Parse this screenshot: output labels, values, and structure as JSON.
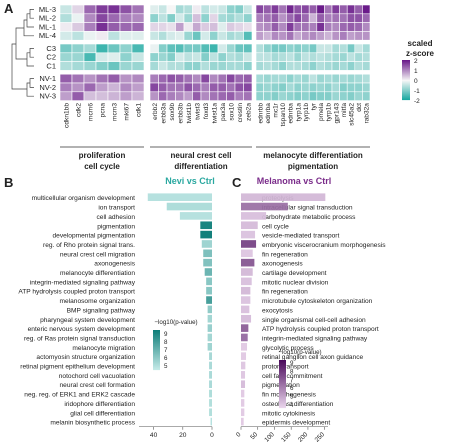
{
  "panels": {
    "A": {
      "label": "A",
      "rows": [
        "ML-3",
        "ML-2",
        "ML-1",
        "ML-4",
        "C3",
        "C2",
        "C1",
        "NV-1",
        "NV-2",
        "NV-3"
      ],
      "row_groups": [
        [
          0,
          1,
          2,
          3
        ],
        [
          4,
          5,
          6
        ],
        [
          7,
          8,
          9
        ]
      ],
      "column_groups": [
        {
          "label_lines": [
            "proliferation",
            "cell cycle"
          ],
          "genes": [
            "cdkn1bb",
            "cdk2",
            "mcm6",
            "pcna",
            "mcm3",
            "mki67",
            "cdk1"
          ]
        },
        {
          "label_lines": [
            "neural crest cell",
            "differentiation"
          ],
          "genes": [
            "erbb2",
            "erbb3a",
            "sox9b",
            "erbb3b",
            "twist1b",
            "twist3",
            "foxd3",
            "twist1a",
            "pax3a",
            "sox10",
            "crestin",
            "zeb2a"
          ]
        },
        {
          "label_lines": [
            "melanocyte differentiation",
            "pigmentation"
          ],
          "genes": [
            "ednrbb",
            "ednrba",
            "mc1r",
            "tspan10",
            "ednrba",
            "tyrp1a",
            "tyrp1b",
            "tyr",
            "pmela",
            "tyrp1b",
            "gpr143",
            "mitfa",
            "slc45a2",
            "dct",
            "rab32a"
          ]
        }
      ],
      "legend": {
        "title_lines": [
          "scaled",
          "z-score"
        ],
        "ticks": [
          2,
          1,
          0,
          -1,
          -2
        ]
      },
      "chart_data": {
        "type": "heatmap",
        "rows": [
          "ML-3",
          "ML-2",
          "ML-1",
          "ML-4",
          "C3",
          "C2",
          "C1",
          "NV-1",
          "NV-2",
          "NV-3"
        ],
        "color_range": [
          -2,
          2
        ],
        "values": [
          [
            -0.4,
            0.3,
            1.3,
            1.7,
            1.8,
            1.5,
            1.2,
            -0.2,
            -0.4,
            0.0,
            -0.7,
            -0.6,
            0.1,
            -0.5,
            -0.3,
            -0.4,
            -0.9,
            -1.0,
            -0.4,
            1.6,
            1.4,
            1.7,
            1.2,
            1.9,
            1.5,
            1.6,
            1.4,
            2.0,
            1.2,
            1.7,
            1.4,
            1.8,
            1.4,
            2.0
          ],
          [
            -0.6,
            -0.1,
            1.0,
            1.6,
            1.3,
            1.1,
            1.0,
            -0.9,
            -0.5,
            -1.0,
            -0.3,
            -0.8,
            0.5,
            -0.9,
            0.3,
            -0.7,
            -0.8,
            -0.6,
            -0.9,
            1.1,
            1.2,
            1.4,
            0.9,
            1.3,
            1.6,
            1.3,
            0.6,
            1.4,
            1.1,
            1.2,
            1.2,
            1.5,
            1.5,
            1.3
          ],
          [
            0.1,
            0.4,
            1.1,
            1.8,
            1.4,
            1.3,
            1.3,
            0.3,
            0.3,
            0.2,
            0.8,
            0.1,
            0.7,
            0.4,
            0.5,
            -0.2,
            0.4,
            0.3,
            0.2,
            0.9,
            1.0,
            1.4,
            1.0,
            1.7,
            1.2,
            1.2,
            1.1,
            1.8,
            1.1,
            1.0,
            1.3,
            1.4,
            1.3,
            1.0
          ],
          [
            -0.3,
            -0.5,
            -0.1,
            0.1,
            -0.5,
            -0.2,
            -0.2,
            -0.4,
            -0.6,
            -0.3,
            -0.2,
            -0.8,
            -1.2,
            -0.3,
            -0.9,
            -0.4,
            -0.7,
            -0.6,
            -1.4,
            0.8,
            0.6,
            1.0,
            0.9,
            1.2,
            0.7,
            0.9,
            1.0,
            0.8,
            0.6,
            0.9,
            1.1,
            0.8,
            0.9,
            0.9
          ],
          [
            -1.1,
            -0.9,
            -0.7,
            -1.6,
            -1.2,
            -0.9,
            -1.5,
            -0.1,
            -1.0,
            -1.3,
            -1.4,
            -1.1,
            -1.1,
            -1.4,
            -1.6,
            -0.3,
            -0.8,
            -1.2,
            -1.3,
            -0.6,
            -0.9,
            -1.1,
            -1.1,
            -0.9,
            -1.0,
            -0.9,
            -1.1,
            -0.4,
            -0.4,
            -0.7,
            -0.6,
            -1.1,
            -0.4,
            -0.7
          ],
          [
            -0.8,
            -0.8,
            -1.5,
            -0.3,
            -0.2,
            -0.9,
            -0.4,
            -0.9,
            -0.8,
            -1.0,
            -0.3,
            -0.5,
            -0.4,
            -1.0,
            -0.5,
            -0.9,
            -0.6,
            -0.7,
            -0.4,
            -0.5,
            -0.5,
            -0.7,
            -0.6,
            -0.5,
            -0.8,
            -0.5,
            -0.6,
            -0.5,
            -0.6,
            -0.7,
            -0.8,
            -0.5,
            -0.7,
            -0.6
          ],
          [
            -0.6,
            -0.7,
            -0.8,
            -1.0,
            -1.2,
            -0.8,
            -0.8,
            -0.7,
            -0.4,
            -0.6,
            -0.6,
            -0.9,
            -0.9,
            -0.6,
            -0.8,
            -0.8,
            -0.7,
            -0.7,
            -0.9,
            -0.7,
            -0.6,
            -0.7,
            -0.9,
            -0.6,
            -0.6,
            -0.7,
            -0.9,
            -0.6,
            -0.7,
            -0.8,
            -0.7,
            -0.9,
            -0.6,
            -0.7
          ],
          [
            1.4,
            1.2,
            0.9,
            1.2,
            1.4,
            0.9,
            1.0,
            1.1,
            1.3,
            1.5,
            1.4,
            1.2,
            1.0,
            1.6,
            1.0,
            1.2,
            1.6,
            1.3,
            1.4,
            -0.7,
            -0.8,
            -0.7,
            -0.7,
            -0.9,
            -0.7,
            -0.8,
            -0.5,
            -0.8,
            -0.7,
            -0.8,
            -0.7,
            -0.8,
            -0.7,
            -0.6
          ],
          [
            1.1,
            0.9,
            1.3,
            0.8,
            0.6,
            1.0,
            0.8,
            1.6,
            1.4,
            1.2,
            1.2,
            1.5,
            1.3,
            1.1,
            1.4,
            1.4,
            1.2,
            1.5,
            1.6,
            -0.9,
            -0.8,
            -0.9,
            -1.0,
            -0.7,
            -0.9,
            -0.8,
            -0.9,
            -0.8,
            -0.9,
            -0.7,
            -1.0,
            -0.9,
            -0.9,
            -0.8
          ],
          [
            0.8,
            1.4,
            0.5,
            0.5,
            0.6,
            0.8,
            0.6,
            0.9,
            1.3,
            1.1,
            1.0,
            0.8,
            1.4,
            1.0,
            1.2,
            1.3,
            1.4,
            1.1,
            1.2,
            -0.9,
            -0.9,
            -1.0,
            -0.8,
            -0.9,
            -1.0,
            -0.9,
            -1.1,
            -1.0,
            -1.0,
            -0.8,
            -0.9,
            -1.0,
            -0.8,
            -0.9
          ]
        ]
      }
    },
    "B": {
      "label": "B",
      "title": "Nevi vs Ctrl",
      "legend_title": "−log10(p-value)",
      "legend_ticks": [
        9,
        8,
        7,
        6,
        5
      ],
      "x_ticks": [
        40,
        20,
        0
      ],
      "chart_data": {
        "type": "bar",
        "orientation": "horizontal",
        "xlim": [
          50,
          0
        ],
        "color_range": [
          4.5,
          9.5
        ],
        "categories": [
          "multicellular organism development",
          "ion transport",
          "cell adhesion",
          "pigmentation",
          "developmental pigmentation",
          "reg. of Rho protein signal trans.",
          "neural crest cell migration",
          "axonogenesis",
          "melanocyte differentiation",
          "integrin-mediated signaling pathway",
          "ATP hydrolysis coupled proton transport",
          "melanosome organization",
          "BMP signaling pathway",
          "pharyngeal system development",
          "enteric nervous system development",
          "reg. of Ras protein signal transduction",
          "melanocyte migration",
          "actomyosin structure organization",
          "retinal pigment epithelium development",
          "notochord cell vacuolation",
          "neural crest cell formation",
          "neg. reg. of ERK1 and ERK2 cascade",
          "iridophore differentiation",
          "glial cell differentiation",
          "melanin biosynthetic process"
        ],
        "values": [
          44,
          31,
          22,
          8,
          8,
          7,
          6,
          6,
          5,
          4,
          4,
          4,
          3,
          3,
          3,
          3,
          3,
          2,
          2,
          2,
          2,
          2,
          2,
          2,
          1
        ],
        "color_values": [
          5.0,
          5.2,
          5.0,
          9.2,
          9.4,
          5.6,
          6.5,
          6.4,
          7.0,
          6.2,
          6.2,
          8.0,
          6.0,
          5.5,
          5.8,
          5.5,
          5.6,
          5.4,
          5.3,
          5.3,
          5.3,
          5.2,
          5.1,
          5.1,
          5.0
        ]
      }
    },
    "C": {
      "label": "C",
      "title": "Melanoma vs Ctrl",
      "legend_title": "−log10(p-value)",
      "legend_ticks": [
        9,
        8,
        7,
        6,
        5,
        4
      ],
      "x_ticks": [
        0,
        50,
        100,
        150,
        200,
        250
      ],
      "chart_data": {
        "type": "bar",
        "orientation": "horizontal",
        "xlim": [
          0,
          260
        ],
        "color_range": [
          3.5,
          9.5
        ],
        "categories": [
          "proteolysis",
          "intracellular signal transduction",
          "carbohydrate metabolic process",
          "cell cycle",
          "vesicle-mediated transport",
          "embryonic viscerocranium morphogenesis",
          "fin regeneration",
          "axonogenesis",
          "cartilage development",
          "mitotic nuclear division",
          "fin regeneration",
          "microtubule cytoskeleton organization",
          "exocytosis",
          "single organismal cell-cell adhesion",
          "ATP hydrolysis coupled proton transport",
          "integrin-mediated signaling pathway",
          "glycolytic process",
          "retinal ganglion cell axon guidance",
          "proton transport",
          "cell fate commitment",
          "pigmentation",
          "fin morphogenesis",
          "osteoblast differentiation",
          "mitotic cytokinesis",
          "epidermis development"
        ],
        "values": [
          252,
          140,
          75,
          50,
          42,
          45,
          35,
          40,
          35,
          32,
          28,
          28,
          25,
          30,
          22,
          20,
          18,
          15,
          13,
          12,
          12,
          10,
          10,
          10,
          8
        ],
        "color_values": [
          4.5,
          6.6,
          4.3,
          4.4,
          4.2,
          8.0,
          4.1,
          7.4,
          4.5,
          4.3,
          4.5,
          4.2,
          4.3,
          4.4,
          7.2,
          6.8,
          4.0,
          4.0,
          4.1,
          4.1,
          4.4,
          4.0,
          4.0,
          4.0,
          4.0
        ]
      }
    }
  }
}
